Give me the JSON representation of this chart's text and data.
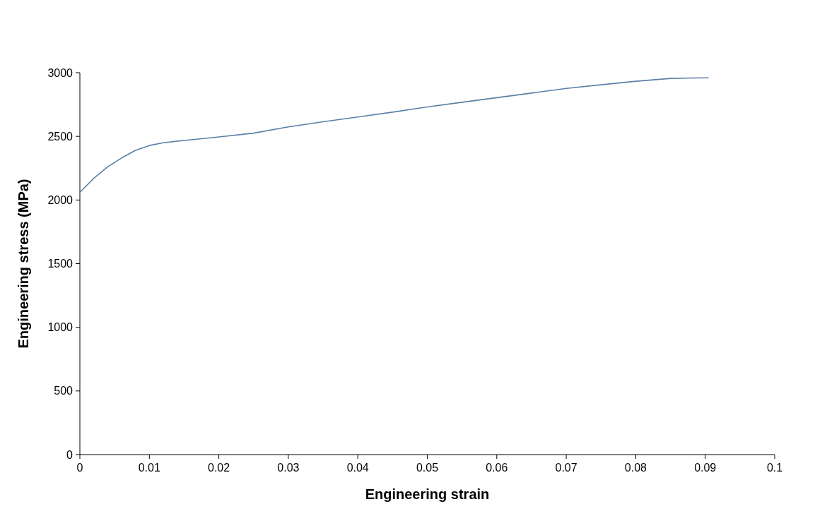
{
  "chart_data": {
    "type": "line",
    "xlabel": "Engineering strain",
    "ylabel": "Engineering stress (MPa)",
    "x": [
      0,
      0.002,
      0.004,
      0.006,
      0.008,
      0.01,
      0.012,
      0.015,
      0.02,
      0.025,
      0.03,
      0.035,
      0.04,
      0.045,
      0.05,
      0.055,
      0.06,
      0.065,
      0.07,
      0.075,
      0.08,
      0.085,
      0.088,
      0.0905
    ],
    "series": [
      {
        "color": "#5a7fa6",
        "values": [
          2060,
          2170,
          2260,
          2330,
          2390,
          2428,
          2450,
          2468,
          2495,
          2525,
          2574,
          2615,
          2652,
          2690,
          2731,
          2768,
          2804,
          2840,
          2877,
          2905,
          2933,
          2955,
          2958,
          2960
        ]
      }
    ],
    "xlim": [
      0,
      0.1
    ],
    "ylim": [
      0,
      3000
    ],
    "xticks": [
      0,
      0.01,
      0.02,
      0.03,
      0.04,
      0.05,
      0.06,
      0.07,
      0.08,
      0.09,
      0.1
    ],
    "yticks": [
      0,
      500,
      1000,
      1500,
      2000,
      2500,
      3000
    ],
    "marker": "none",
    "line_style": "solid"
  }
}
